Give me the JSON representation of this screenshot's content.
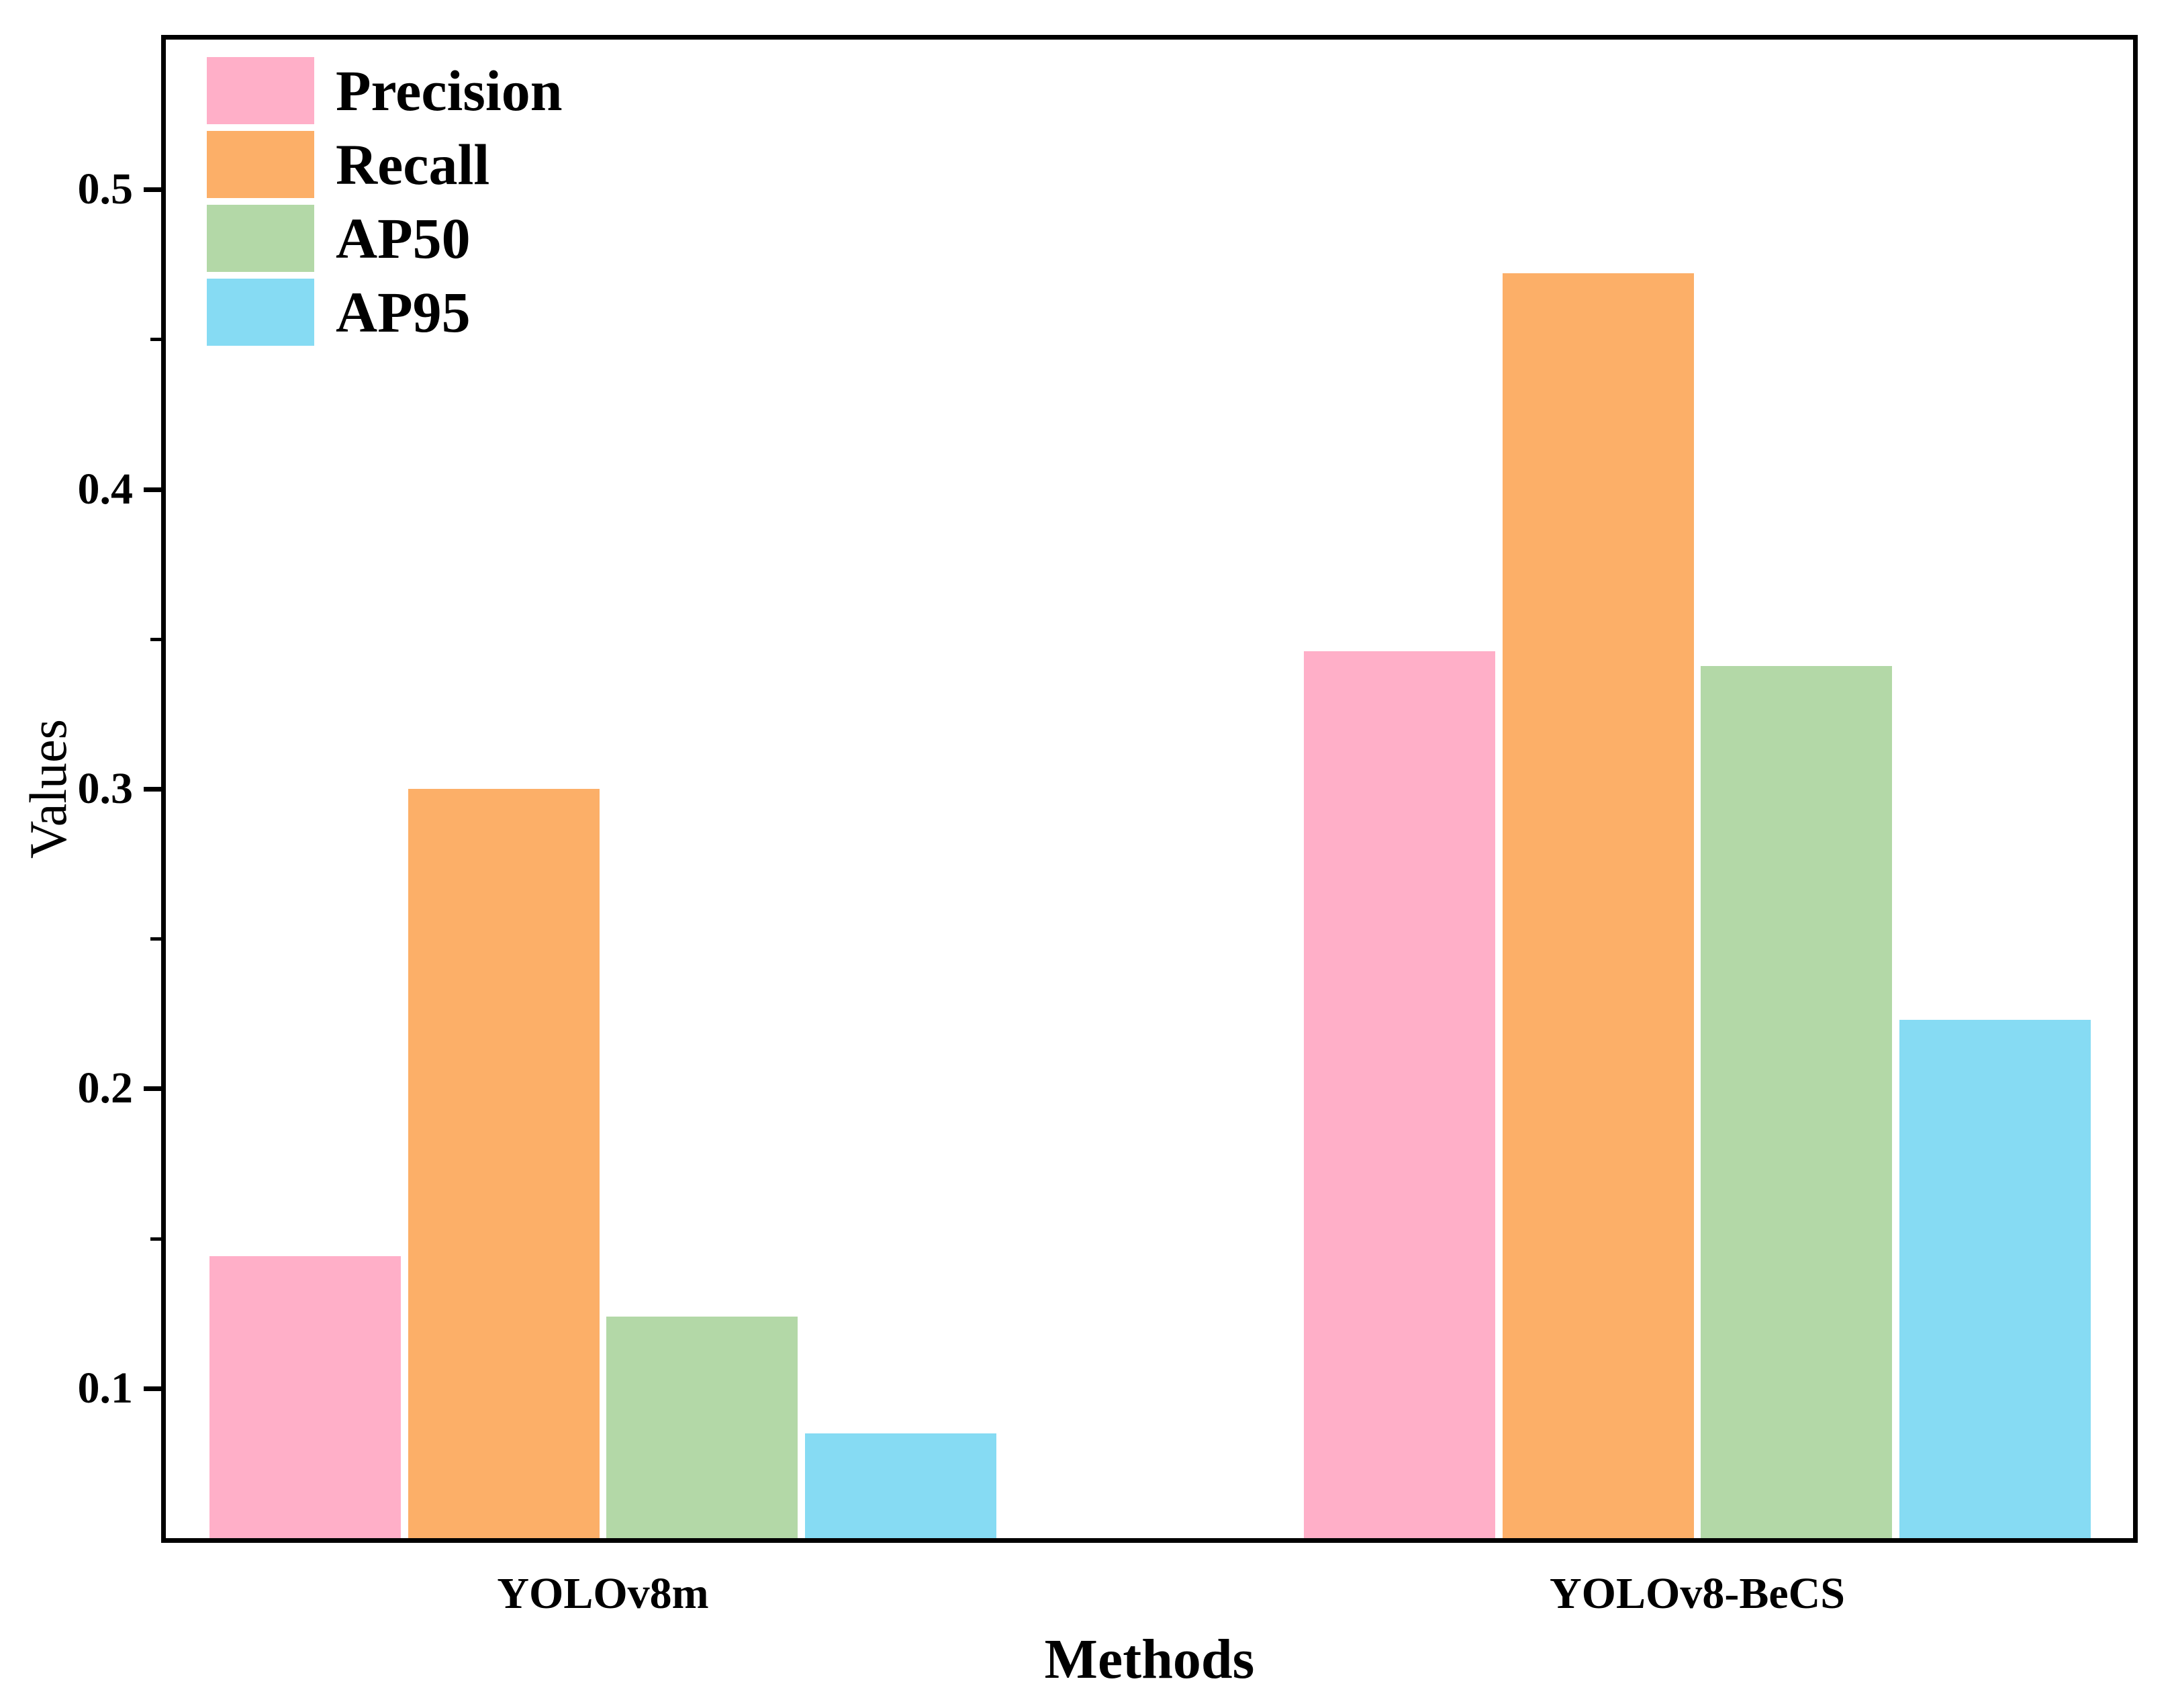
{
  "figure": {
    "background": "#ffffff",
    "text_color": "#000000"
  },
  "chart_data": {
    "type": "bar",
    "title": "",
    "xlabel": "Methods",
    "ylabel": "Values",
    "categories": [
      "YOLOv8m",
      "YOLOv8-BeCS"
    ],
    "series": [
      {
        "name": "Precision",
        "color": "#FFAFC8",
        "values": [
          0.144,
          0.346
        ]
      },
      {
        "name": "Recall",
        "color": "#FCAF68",
        "values": [
          0.3,
          0.472
        ]
      },
      {
        "name": "AP50",
        "color": "#B3D8A7",
        "values": [
          0.124,
          0.341
        ]
      },
      {
        "name": "AP95",
        "color": "#86DBF3",
        "values": [
          0.085,
          0.223
        ]
      }
    ],
    "ylim": [
      0.05,
      0.55
    ],
    "yticks": [
      0.1,
      0.2,
      0.3,
      0.4,
      0.5
    ],
    "ytick_labels": [
      "0.1",
      "0.2",
      "0.3",
      "0.4",
      "0.5"
    ],
    "minor_yticks": [
      0.15,
      0.25,
      0.35,
      0.45
    ],
    "grid": false,
    "legend_position": "upper-left",
    "bar_edge": "none"
  }
}
